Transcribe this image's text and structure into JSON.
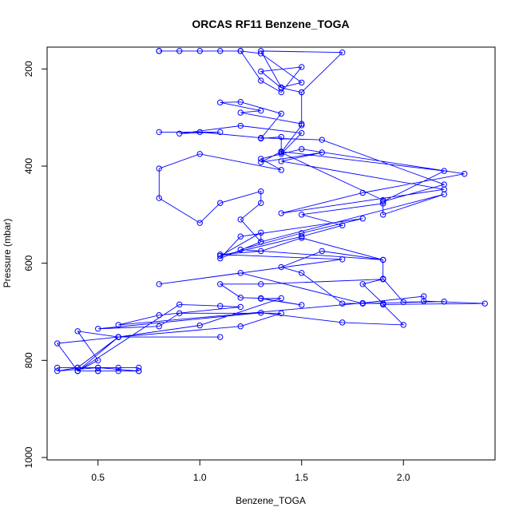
{
  "chart_data": {
    "type": "line",
    "title": "ORCAS RF11 Benzene_TOGA",
    "xlabel": "Benzene_TOGA",
    "ylabel": "Pressure (mbar)",
    "xlim": [
      0.25,
      2.45
    ],
    "ylim": [
      1005,
      155
    ],
    "y_reversed": true,
    "xticks": [
      0.5,
      1.0,
      1.5,
      2.0
    ],
    "xtick_labels": [
      "0.5",
      "1.0",
      "1.5",
      "2.0"
    ],
    "yticks": [
      200,
      400,
      600,
      800,
      1000
    ],
    "ytick_labels": [
      "200",
      "400",
      "600",
      "800",
      "1000"
    ],
    "grid": false,
    "legend": "none",
    "series_color": "#0000ff",
    "marker": "open-circle",
    "points": [
      [
        0.7,
        822
      ],
      [
        0.5,
        822
      ],
      [
        0.4,
        822
      ],
      [
        0.5,
        822
      ],
      [
        0.6,
        822
      ],
      [
        0.7,
        822
      ],
      [
        0.5,
        815
      ],
      [
        0.3,
        815
      ],
      [
        0.4,
        815
      ],
      [
        0.6,
        815
      ],
      [
        0.7,
        815
      ],
      [
        0.5,
        815
      ],
      [
        0.3,
        822
      ],
      [
        0.4,
        815
      ],
      [
        0.6,
        752
      ],
      [
        1.1,
        752
      ],
      [
        0.6,
        752
      ],
      [
        0.4,
        740
      ],
      [
        0.5,
        800
      ],
      [
        0.4,
        822
      ],
      [
        0.3,
        765
      ],
      [
        0.6,
        752
      ],
      [
        1.2,
        730
      ],
      [
        1.4,
        703
      ],
      [
        0.9,
        703
      ],
      [
        0.8,
        730
      ],
      [
        0.5,
        735
      ],
      [
        1.3,
        702
      ],
      [
        1.7,
        722
      ],
      [
        2.0,
        727
      ],
      [
        1.9,
        685
      ],
      [
        2.4,
        683
      ],
      [
        2.1,
        678
      ],
      [
        2.1,
        668
      ],
      [
        1.8,
        682
      ],
      [
        0.6,
        727
      ],
      [
        0.8,
        707
      ],
      [
        1.2,
        690
      ],
      [
        1.1,
        688
      ],
      [
        0.9,
        685
      ],
      [
        0.4,
        822
      ],
      [
        0.6,
        752
      ],
      [
        1.0,
        728
      ],
      [
        1.4,
        672
      ],
      [
        1.3,
        673
      ],
      [
        1.5,
        686
      ],
      [
        1.3,
        672
      ],
      [
        1.2,
        671
      ],
      [
        1.1,
        643
      ],
      [
        1.3,
        643
      ],
      [
        1.9,
        633
      ],
      [
        1.8,
        643
      ],
      [
        1.9,
        683
      ],
      [
        1.7,
        683
      ],
      [
        1.5,
        620
      ],
      [
        1.4,
        608
      ],
      [
        1.6,
        575
      ],
      [
        1.9,
        593
      ],
      [
        1.9,
        632
      ],
      [
        2.0,
        680
      ],
      [
        2.2,
        679
      ],
      [
        1.8,
        683
      ],
      [
        1.2,
        620
      ],
      [
        0.8,
        643
      ],
      [
        1.7,
        592
      ],
      [
        1.1,
        582
      ],
      [
        1.3,
        575
      ],
      [
        1.5,
        548
      ],
      [
        1.9,
        593
      ],
      [
        1.2,
        572
      ],
      [
        1.5,
        538
      ],
      [
        1.8,
        508
      ],
      [
        1.2,
        545
      ],
      [
        1.1,
        590
      ],
      [
        1.3,
        556
      ],
      [
        1.3,
        537
      ],
      [
        1.1,
        585
      ],
      [
        1.5,
        545
      ],
      [
        1.7,
        522
      ],
      [
        1.5,
        500
      ],
      [
        1.9,
        477
      ],
      [
        1.9,
        500
      ],
      [
        2.2,
        458
      ],
      [
        1.3,
        556
      ],
      [
        1.2,
        510
      ],
      [
        1.3,
        476
      ],
      [
        1.3,
        452
      ],
      [
        1.1,
        476
      ],
      [
        1.0,
        517
      ],
      [
        0.8,
        466
      ],
      [
        0.8,
        405
      ],
      [
        1.0,
        375
      ],
      [
        1.4,
        408
      ],
      [
        1.3,
        385
      ],
      [
        1.5,
        365
      ],
      [
        2.3,
        416
      ],
      [
        1.8,
        455
      ],
      [
        1.4,
        497
      ],
      [
        2.2,
        448
      ],
      [
        1.4,
        390
      ],
      [
        1.6,
        372
      ],
      [
        1.3,
        392
      ],
      [
        1.4,
        370
      ],
      [
        2.2,
        410
      ],
      [
        1.9,
        473
      ],
      [
        2.2,
        438
      ],
      [
        1.6,
        346
      ],
      [
        1.3,
        342
      ],
      [
        1.0,
        330
      ],
      [
        0.8,
        330
      ],
      [
        1.1,
        330
      ],
      [
        0.9,
        333
      ],
      [
        1.2,
        317
      ],
      [
        1.5,
        332
      ],
      [
        1.4,
        375
      ],
      [
        1.4,
        340
      ],
      [
        1.3,
        343
      ],
      [
        1.4,
        292
      ],
      [
        1.2,
        268
      ],
      [
        1.1,
        269
      ],
      [
        1.3,
        286
      ],
      [
        1.2,
        290
      ],
      [
        1.5,
        313
      ],
      [
        1.5,
        248
      ],
      [
        1.4,
        239
      ],
      [
        1.3,
        205
      ],
      [
        1.5,
        196
      ],
      [
        1.4,
        248
      ],
      [
        1.3,
        224
      ],
      [
        1.2,
        163
      ],
      [
        1.1,
        163
      ],
      [
        0.9,
        163
      ],
      [
        0.8,
        163
      ],
      [
        1.0,
        163
      ],
      [
        0.8,
        163
      ],
      [
        1.2,
        163
      ],
      [
        1.3,
        168
      ],
      [
        1.5,
        228
      ],
      [
        1.4,
        238
      ],
      [
        1.3,
        163
      ],
      [
        1.7,
        166
      ],
      [
        1.5,
        248
      ],
      [
        1.5,
        316
      ],
      [
        1.4,
        372
      ],
      [
        1.9,
        470
      ]
    ]
  }
}
